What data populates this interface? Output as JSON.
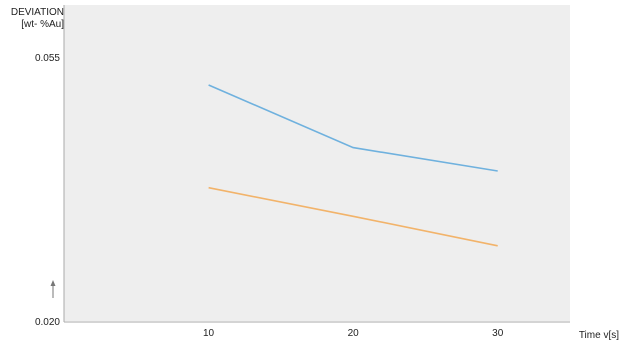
{
  "chart_data": {
    "type": "line",
    "title": "",
    "ylabel_line1": "DEVIATION",
    "ylabel_line2": "[wt- %Au]",
    "xlabel": "Time v[s]",
    "xlim": [
      0,
      35
    ],
    "ylim": [
      0.02,
      0.062
    ],
    "x_ticks": [
      10,
      20,
      30
    ],
    "y_ticks": [
      "0.055",
      "0.020"
    ],
    "y_tick_values": [
      0.055,
      0.02
    ],
    "grid": false,
    "series": [
      {
        "color": "#6fb1de",
        "x": [
          10,
          20,
          30
        ],
        "y": [
          0.0514,
          0.0431,
          0.04
        ]
      },
      {
        "color": "#f2b36a",
        "x": [
          10,
          20,
          30
        ],
        "y": [
          0.0378,
          0.034,
          0.0301
        ]
      }
    ],
    "plot_background": "#eeeeee",
    "axis_color": "#aaaaaa",
    "marker_arrow_color": "#777777"
  }
}
